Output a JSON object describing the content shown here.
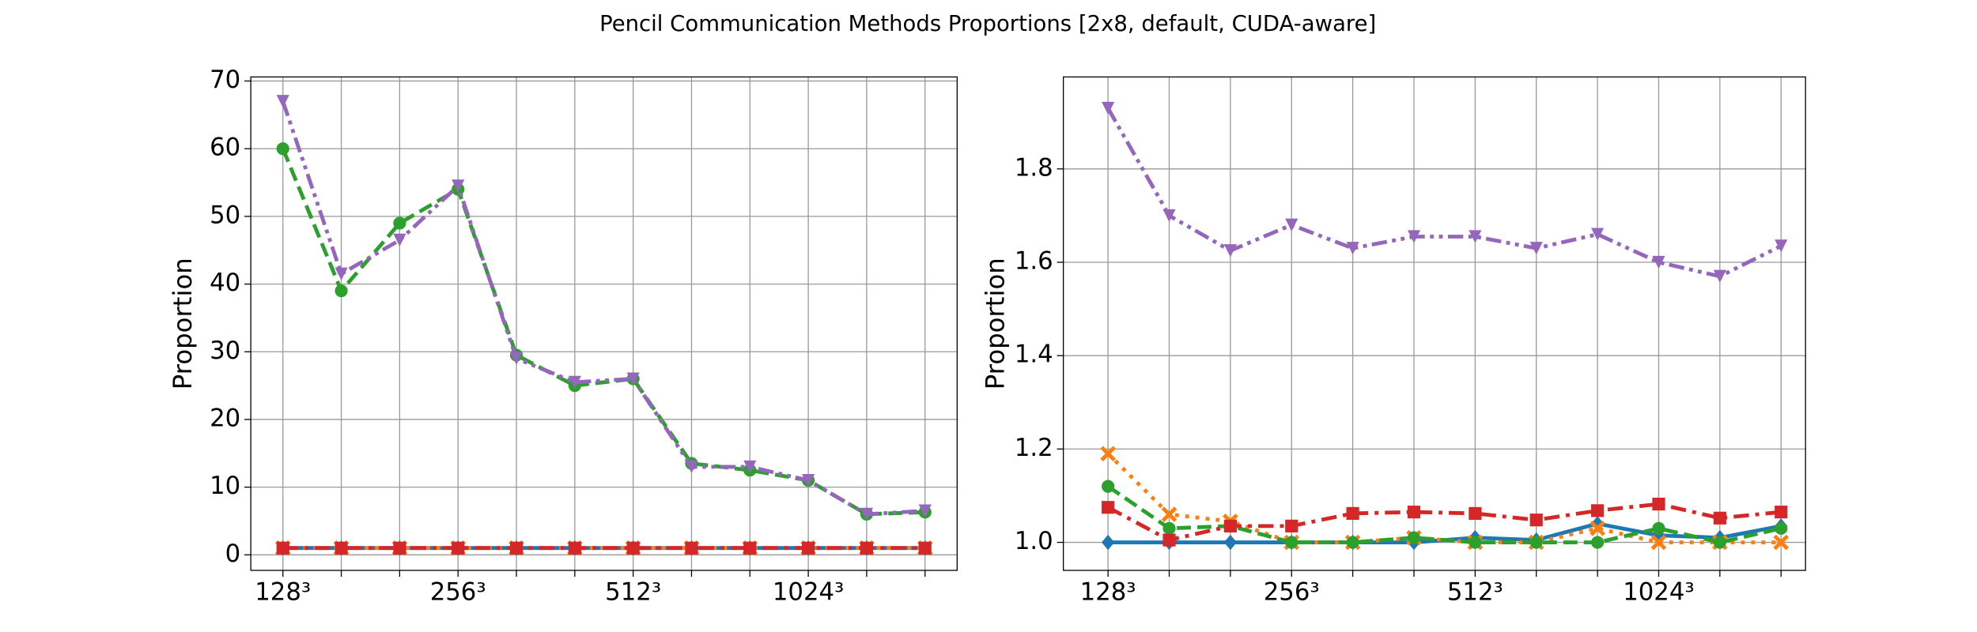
{
  "title": "Pencil Communication Methods Proportions [2x8, default, CUDA-aware]",
  "chart_data": [
    {
      "type": "line",
      "ylabel": "Proportion",
      "categories": [
        "128³",
        null,
        null,
        "256³",
        null,
        null,
        "512³",
        null,
        null,
        "1024³",
        null,
        null
      ],
      "xlim": [
        -0.55,
        11.55
      ],
      "ylim": [
        -2.3,
        70.6
      ],
      "yticks": [
        0,
        10,
        20,
        30,
        40,
        50,
        60,
        70
      ],
      "grid": true,
      "series": [
        {
          "color": "#1f77b4",
          "linestyle": "solid",
          "marker": "diamond",
          "values": [
            1,
            1,
            1,
            1,
            1,
            1,
            1,
            1,
            1,
            1,
            1,
            1
          ]
        },
        {
          "color": "#ff7f0e",
          "linestyle": "dotted",
          "marker": "x",
          "values": [
            1,
            1,
            1,
            1,
            1,
            1,
            1,
            1,
            1,
            1,
            1,
            1
          ]
        },
        {
          "color": "#2ca02c",
          "linestyle": "dashed",
          "marker": "circle",
          "values": [
            60,
            39,
            49,
            54,
            29.5,
            25,
            26,
            13.5,
            12.5,
            11,
            6,
            6.3
          ]
        },
        {
          "color": "#d62728",
          "linestyle": "dashdot",
          "marker": "square",
          "values": [
            1,
            1,
            1,
            1,
            1,
            1,
            1,
            1,
            1,
            1,
            1,
            1
          ]
        },
        {
          "color": "#9467bd",
          "linestyle": "dashdotdot",
          "marker": "triangle-down",
          "values": [
            67,
            41.5,
            46.5,
            54.5,
            29,
            25.5,
            26,
            13,
            13,
            11,
            6,
            6.5
          ]
        }
      ]
    },
    {
      "type": "line",
      "ylabel": "Proportion",
      "categories": [
        "128³",
        null,
        null,
        "256³",
        null,
        null,
        "512³",
        null,
        null,
        "1024³",
        null,
        null
      ],
      "xlim": [
        -0.73,
        11.4
      ],
      "ylim": [
        0.94,
        1.997
      ],
      "yticks": [
        {
          "value": 1,
          "label": "1.0"
        },
        1.2,
        1.4,
        1.6,
        1.8
      ],
      "grid": true,
      "series": [
        {
          "color": "#1f77b4",
          "linestyle": "solid",
          "marker": "diamond",
          "values": [
            1.0,
            1.0,
            1.0,
            1.0,
            1.0,
            1.0,
            1.01,
            1.005,
            1.04,
            1.015,
            1.01,
            1.035
          ]
        },
        {
          "color": "#ff7f0e",
          "linestyle": "dotted",
          "marker": "x",
          "values": [
            1.19,
            1.06,
            1.045,
            1.0,
            1.0,
            1.01,
            1.0,
            1.0,
            1.03,
            1.0,
            1.0,
            1.0
          ]
        },
        {
          "color": "#2ca02c",
          "linestyle": "dashed",
          "marker": "circle",
          "values": [
            1.12,
            1.03,
            1.035,
            1.0,
            1.0,
            1.01,
            1.0,
            1.0,
            1.0,
            1.03,
            1.0,
            1.03
          ]
        },
        {
          "color": "#d62728",
          "linestyle": "dashdot",
          "marker": "square",
          "values": [
            1.075,
            1.005,
            1.035,
            1.035,
            1.062,
            1.065,
            1.062,
            1.048,
            1.068,
            1.082,
            1.052,
            1.065
          ]
        },
        {
          "color": "#9467bd",
          "linestyle": "dashdotdot",
          "marker": "triangle-down",
          "values": [
            1.93,
            1.7,
            1.625,
            1.68,
            1.63,
            1.655,
            1.655,
            1.63,
            1.66,
            1.6,
            1.57,
            1.635
          ]
        }
      ]
    }
  ]
}
